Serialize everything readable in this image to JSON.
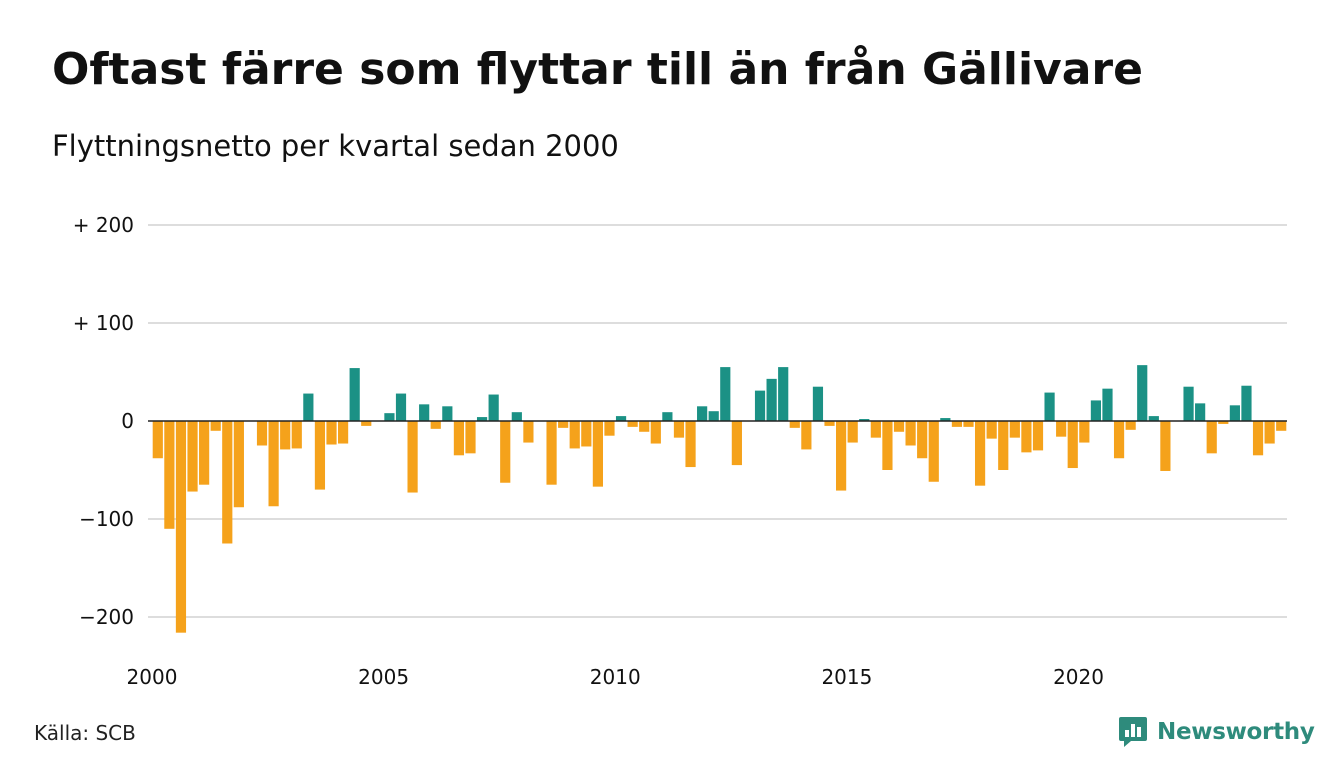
{
  "title": "Oftast färre som flyttar till än från Gällivare",
  "subtitle": "Flyttningsnetto per kvartal sedan 2000",
  "source": "Källa: SCB",
  "logo": {
    "text": "Newsworthy",
    "icon": "newsworthy-logo-icon",
    "color": "#2e8b7c"
  },
  "colors": {
    "positive": "#1b9185",
    "negative": "#f5a21b",
    "grid": "#dddddd",
    "zero_line": "#222222"
  },
  "chart_data": {
    "type": "bar",
    "title": "Oftast färre som flyttar till än från Gällivare",
    "subtitle": "Flyttningsnetto per kvartal sedan 2000",
    "xlabel": "",
    "ylabel": "",
    "ylim": [
      -235,
      222
    ],
    "grid": true,
    "legend": "none",
    "y_ticks": [
      {
        "value": 200,
        "label": "+ 200"
      },
      {
        "value": 100,
        "label": "+ 100"
      },
      {
        "value": 0,
        "label": "0"
      },
      {
        "value": -100,
        "label": "−100"
      },
      {
        "value": -200,
        "label": "−200"
      }
    ],
    "x_ticks": [
      {
        "value": 2000,
        "label": "2000"
      },
      {
        "value": 2005,
        "label": "2005"
      },
      {
        "value": 2010,
        "label": "2010"
      },
      {
        "value": 2015,
        "label": "2015"
      },
      {
        "value": 2020,
        "label": "2020"
      }
    ],
    "x_start": 2000,
    "periods_per_year": 4,
    "values": [
      -38,
      -110,
      -216,
      -72,
      -65,
      -10,
      -125,
      -88,
      0,
      -25,
      -87,
      -29,
      -28,
      28,
      -70,
      -24,
      -23,
      54,
      -5,
      0,
      8,
      28,
      -73,
      17,
      -8,
      15,
      -35,
      -33,
      4,
      27,
      -63,
      9,
      -22,
      0,
      -65,
      -7,
      -28,
      -26,
      -67,
      -15,
      5,
      -6,
      -11,
      -23,
      9,
      -17,
      -47,
      15,
      10,
      55,
      -45,
      0,
      31,
      43,
      55,
      -7,
      -29,
      35,
      -5,
      -71,
      -22,
      2,
      -17,
      -50,
      -11,
      -25,
      -38,
      -62,
      3,
      -6,
      -6,
      -66,
      -18,
      -50,
      -17,
      -32,
      -30,
      29,
      -16,
      -48,
      -22,
      21,
      33,
      -38,
      -9,
      57,
      5,
      -51,
      0,
      35,
      18,
      -33,
      -3,
      16,
      36,
      -35,
      -23,
      -10
    ]
  }
}
